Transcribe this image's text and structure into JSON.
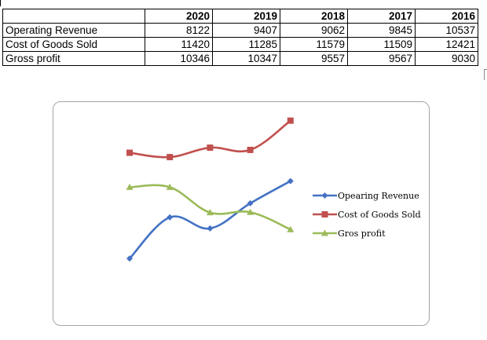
{
  "table": {
    "headers": [
      "",
      "2020",
      "2019",
      "2018",
      "2017",
      "2016"
    ],
    "rows": [
      {
        "label": "Operating Revenue",
        "values": [
          "8122",
          "9407",
          "9062",
          "9845",
          "10537"
        ]
      },
      {
        "label": "Cost of Goods Sold",
        "values": [
          "11420",
          "11285",
          "11579",
          "11509",
          "12421"
        ]
      },
      {
        "label": "Gross profit",
        "values": [
          "10346",
          "10347",
          "9557",
          "9567",
          "9030"
        ]
      }
    ]
  },
  "chart_data": {
    "type": "line",
    "categories": [
      "",
      "",
      "",
      "",
      ""
    ],
    "series": [
      {
        "name": "Opearing Revenue",
        "values": [
          8122,
          9407,
          9062,
          9845,
          10537
        ],
        "color": "#4472c4",
        "marker": "diamond"
      },
      {
        "name": "Cost of Goods Sold",
        "values": [
          11420,
          11285,
          11579,
          11509,
          12421
        ],
        "color": "#c0504d",
        "marker": "square"
      },
      {
        "name": "Gros profit",
        "values": [
          10346,
          10347,
          9557,
          9567,
          9030
        ],
        "color": "#9bbb59",
        "marker": "triangle"
      }
    ],
    "title": "",
    "xlabel": "",
    "ylabel": "",
    "ylim": [
      6000,
      13000
    ],
    "grid": false,
    "legend": "right",
    "smooth": true
  }
}
